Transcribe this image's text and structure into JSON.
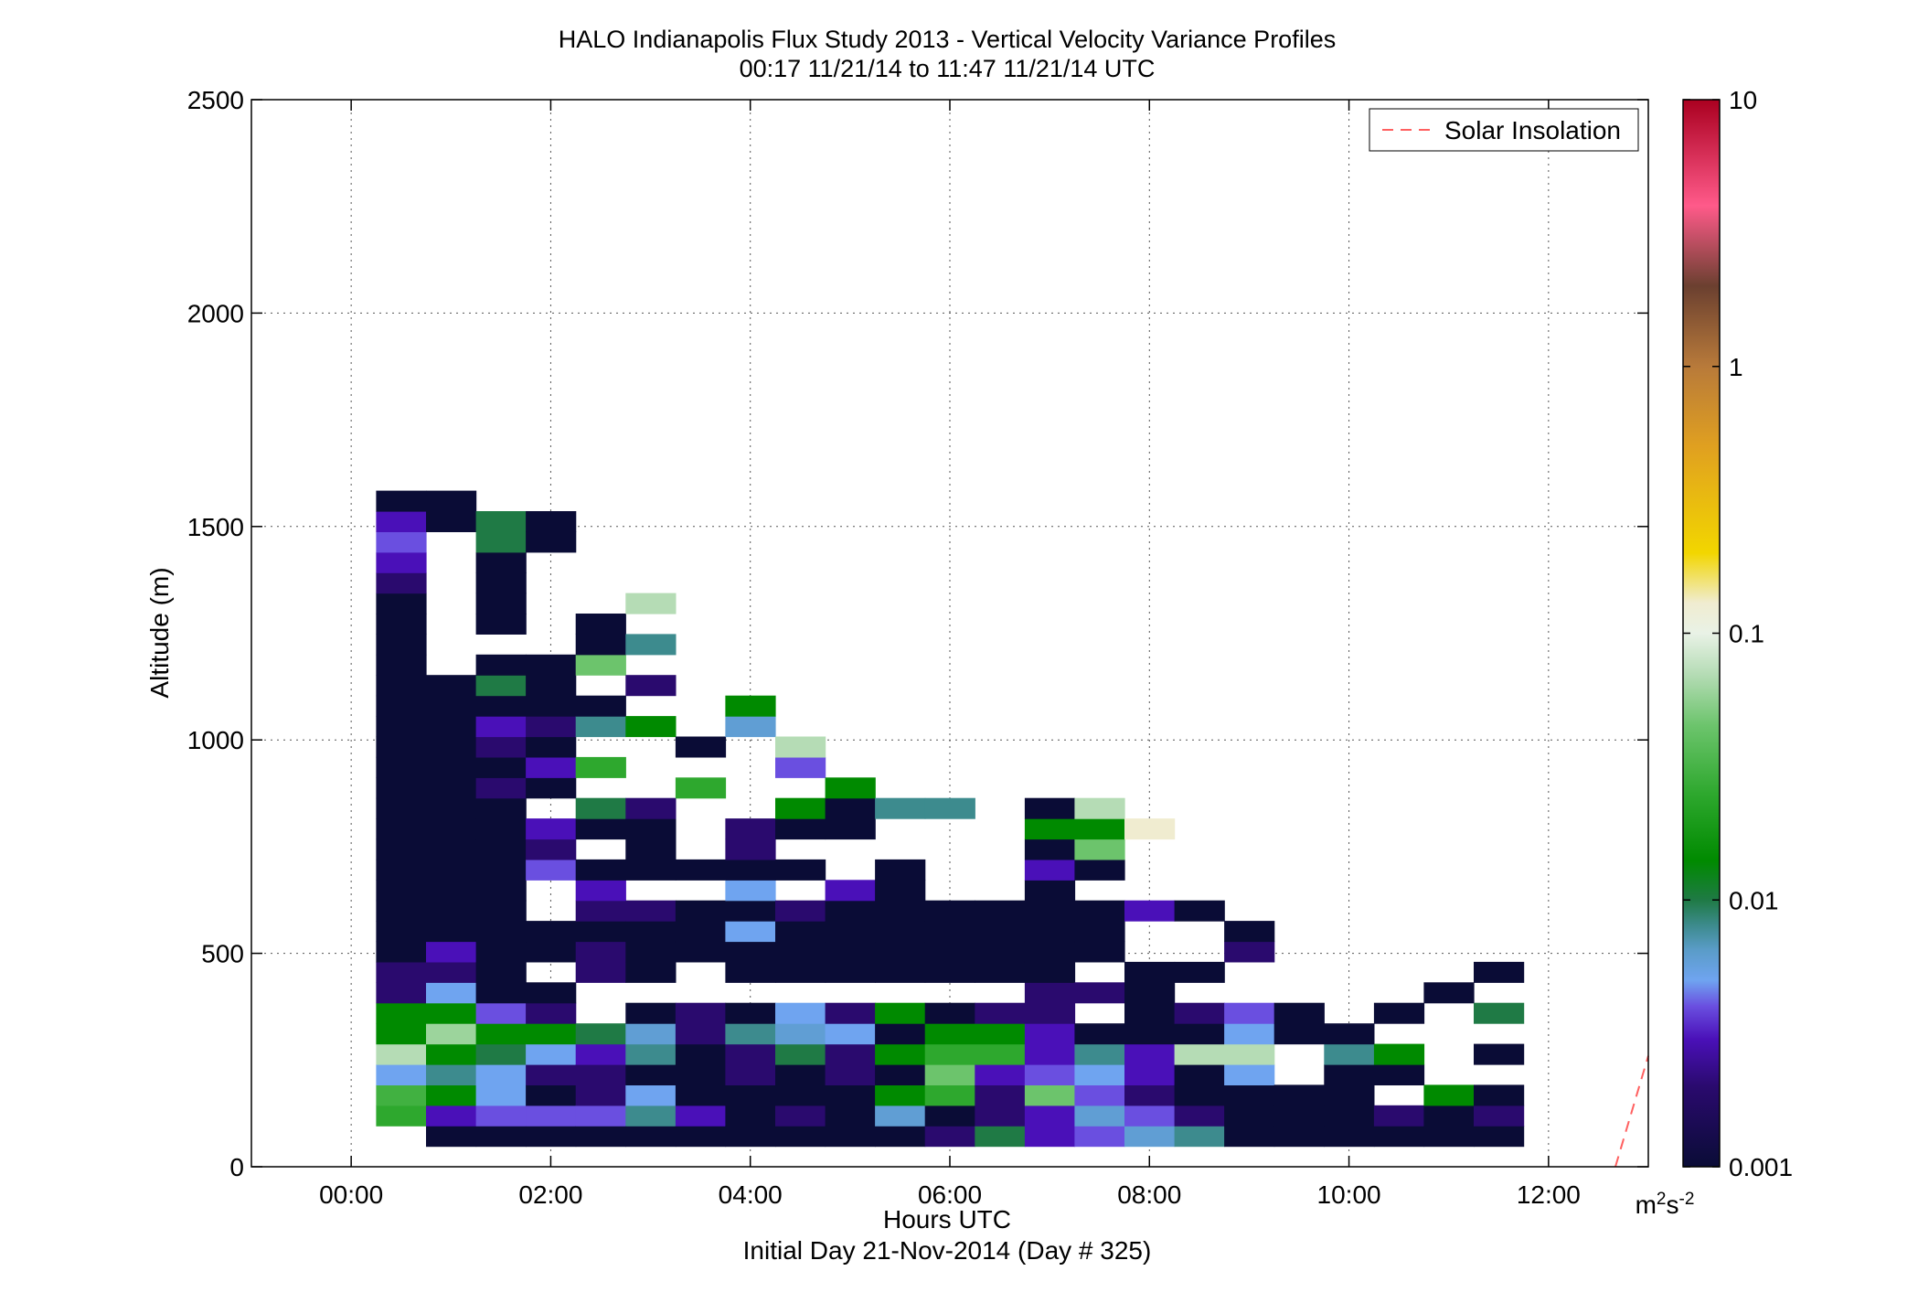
{
  "chart_data": {
    "type": "heatmap",
    "title": "HALO Indianapolis Flux Study 2013 - Vertical Velocity Variance Profiles",
    "subtitle": "00:17 11/21/14 to 11:47 11/21/14  UTC",
    "xlabel": "Hours UTC",
    "xlabel2": "Initial Day 21-Nov-2014 (Day # 325)",
    "ylabel": "Altitude (m)",
    "xlim": [
      -1,
      13
    ],
    "ylim": [
      0,
      2500
    ],
    "x_ticks": [
      0,
      2,
      4,
      6,
      8,
      10,
      12
    ],
    "x_tick_labels": [
      "00:00",
      "02:00",
      "04:00",
      "06:00",
      "08:00",
      "10:00",
      "12:00"
    ],
    "y_ticks": [
      0,
      500,
      1000,
      1500,
      2000,
      2500
    ],
    "y_tick_labels": [
      "0",
      "500",
      "1000",
      "1500",
      "2000",
      "2500"
    ],
    "grid": true,
    "legend": {
      "position": "top-right",
      "entries": [
        {
          "name": "Solar Insolation",
          "style": "dashed",
          "color": "#ff6060"
        }
      ]
    },
    "solar_insolation_line": {
      "x": [
        12.67,
        13.0
      ],
      "y": [
        0,
        260
      ]
    },
    "colorbar": {
      "scale": "log",
      "range": [
        0.001,
        10
      ],
      "ticks": [
        0.001,
        0.01,
        0.1,
        1,
        10
      ],
      "tick_labels": [
        "0.001",
        "0.01",
        "0.1",
        "1",
        "10"
      ],
      "units": "m2s-2",
      "stops": [
        {
          "v": 0.001,
          "color": "#0a0c36"
        },
        {
          "v": 0.002,
          "color": "#2a0a6e"
        },
        {
          "v": 0.003,
          "color": "#4a10b8"
        },
        {
          "v": 0.004,
          "color": "#6a4fe0"
        },
        {
          "v": 0.005,
          "color": "#6fa4f0"
        },
        {
          "v": 0.0065,
          "color": "#5a9cc8"
        },
        {
          "v": 0.008,
          "color": "#3d8b8e"
        },
        {
          "v": 0.01,
          "color": "#1f7a45"
        },
        {
          "v": 0.014,
          "color": "#008a00"
        },
        {
          "v": 0.025,
          "color": "#2ea82e"
        },
        {
          "v": 0.045,
          "color": "#6cc46c"
        },
        {
          "v": 0.07,
          "color": "#b5dcb5"
        },
        {
          "v": 0.1,
          "color": "#e9f2e6"
        },
        {
          "v": 0.13,
          "color": "#f0ecd0"
        },
        {
          "v": 0.2,
          "color": "#f2d600"
        },
        {
          "v": 0.5,
          "color": "#e0a020"
        },
        {
          "v": 1.0,
          "color": "#b87a3a"
        },
        {
          "v": 2.0,
          "color": "#6b4030"
        },
        {
          "v": 4.0,
          "color": "#ff5a8a"
        },
        {
          "v": 10.0,
          "color": "#aa0020"
        }
      ]
    },
    "cell": {
      "dt_hours": 0.5,
      "dz_m": 48
    },
    "time_bins": [
      0.5,
      1.0,
      1.5,
      2.0,
      2.5,
      3.0,
      3.5,
      4.0,
      4.5,
      5.0,
      5.5,
      6.0,
      6.5,
      7.0,
      7.5,
      8.0,
      8.5,
      9.0,
      9.5,
      10.0,
      10.5,
      11.0,
      11.5
    ],
    "alt_bins": [
      72,
      120,
      168,
      216,
      264,
      312,
      360,
      408,
      456,
      504,
      552,
      600,
      648,
      696,
      744,
      792,
      840,
      888,
      936,
      984,
      1032,
      1080,
      1128,
      1176,
      1224,
      1272,
      1320,
      1368,
      1416,
      1464,
      1512,
      1560
    ],
    "profiles": [
      [
        null,
        0.025,
        0.03,
        0.005,
        0.07,
        0.014,
        0.014,
        0.002,
        0.002,
        0.001,
        0.001,
        0.001,
        0.001,
        0.001,
        0.001,
        0.001,
        0.001,
        0.001,
        0.001,
        0.001,
        0.001,
        0.001,
        0.001,
        0.001,
        0.001,
        0.001,
        0.001,
        0.002,
        0.003,
        0.004,
        0.003,
        0.001
      ],
      [
        0.001,
        0.003,
        0.014,
        0.008,
        0.014,
        0.06,
        0.014,
        0.005,
        0.002,
        0.003,
        0.001,
        0.001,
        0.001,
        0.001,
        0.001,
        0.001,
        0.001,
        0.001,
        0.001,
        0.001,
        0.001,
        0.001,
        0.001,
        null,
        null,
        null,
        null,
        null,
        null,
        null,
        0.001,
        0.001
      ],
      [
        0.001,
        0.004,
        0.005,
        0.005,
        0.01,
        0.014,
        0.004,
        0.001,
        0.001,
        0.001,
        0.001,
        0.001,
        0.001,
        0.001,
        0.001,
        0.001,
        0.001,
        0.002,
        0.001,
        0.002,
        0.003,
        0.001,
        0.01,
        0.001,
        null,
        0.001,
        0.001,
        0.001,
        0.001,
        0.01,
        0.01,
        null
      ],
      [
        0.001,
        0.004,
        0.001,
        0.002,
        0.005,
        0.014,
        0.002,
        0.001,
        null,
        0.001,
        0.001,
        null,
        null,
        0.004,
        0.002,
        0.003,
        null,
        0.001,
        0.003,
        0.001,
        0.002,
        0.001,
        0.001,
        0.001,
        null,
        null,
        null,
        null,
        null,
        0.001,
        0.001,
        null
      ],
      [
        0.001,
        0.004,
        0.002,
        0.002,
        0.003,
        0.01,
        null,
        null,
        0.002,
        0.002,
        0.001,
        0.002,
        0.003,
        0.001,
        null,
        0.001,
        0.01,
        null,
        0.025,
        null,
        0.008,
        0.001,
        null,
        0.045,
        0.001,
        0.001,
        null,
        null,
        null,
        null,
        null,
        null
      ],
      [
        0.001,
        0.008,
        0.005,
        0.001,
        0.008,
        0.006,
        0.001,
        null,
        0.001,
        0.001,
        0.001,
        0.002,
        null,
        0.001,
        0.001,
        0.001,
        0.002,
        null,
        null,
        null,
        0.014,
        null,
        0.002,
        null,
        0.008,
        null,
        0.07,
        null,
        null,
        null,
        null,
        null
      ],
      [
        0.001,
        0.003,
        0.001,
        0.001,
        0.001,
        0.002,
        0.002,
        null,
        null,
        0.001,
        0.001,
        0.001,
        null,
        0.001,
        null,
        null,
        null,
        0.025,
        null,
        0.001,
        null,
        null,
        null,
        null,
        null,
        null,
        null,
        null,
        null,
        null,
        null,
        null
      ],
      [
        0.001,
        0.001,
        0.001,
        0.002,
        0.002,
        0.008,
        0.001,
        null,
        0.001,
        0.001,
        0.005,
        0.001,
        0.005,
        0.001,
        0.002,
        0.002,
        null,
        null,
        null,
        null,
        0.006,
        0.014,
        null,
        null,
        null,
        null,
        null,
        null,
        null,
        null,
        null,
        null
      ],
      [
        0.001,
        0.002,
        0.001,
        0.001,
        0.01,
        0.006,
        0.005,
        null,
        0.001,
        0.001,
        0.001,
        0.002,
        null,
        0.001,
        null,
        0.001,
        0.014,
        null,
        0.004,
        0.07,
        null,
        null,
        null,
        null,
        null,
        null,
        null,
        null,
        null,
        null,
        null,
        null
      ],
      [
        0.001,
        0.001,
        0.001,
        0.002,
        0.002,
        0.005,
        0.002,
        null,
        0.001,
        0.001,
        0.001,
        0.001,
        0.003,
        null,
        null,
        0.001,
        0.001,
        0.014,
        null,
        null,
        null,
        null,
        null,
        null,
        null,
        null,
        null,
        null,
        null,
        null,
        null,
        null
      ],
      [
        0.001,
        0.006,
        0.014,
        0.001,
        0.014,
        0.001,
        0.014,
        null,
        0.001,
        0.001,
        0.001,
        0.001,
        0.001,
        0.001,
        null,
        null,
        0.008,
        null,
        null,
        null,
        null,
        null,
        null,
        null,
        null,
        null,
        null,
        null,
        null,
        null,
        null,
        null
      ],
      [
        0.002,
        0.001,
        0.025,
        0.045,
        0.025,
        0.014,
        0.001,
        null,
        0.001,
        0.001,
        0.001,
        0.001,
        null,
        null,
        null,
        null,
        0.008,
        null,
        null,
        null,
        null,
        null,
        null,
        null,
        null,
        null,
        null,
        null,
        null,
        null,
        null,
        null
      ],
      [
        0.01,
        0.002,
        0.002,
        0.003,
        0.025,
        0.014,
        0.002,
        null,
        0.001,
        0.001,
        0.001,
        0.001,
        null,
        null,
        null,
        null,
        null,
        null,
        null,
        null,
        null,
        null,
        null,
        null,
        null,
        null,
        null,
        null,
        null,
        null,
        null,
        null
      ],
      [
        0.003,
        0.003,
        0.045,
        0.004,
        0.003,
        0.003,
        0.002,
        0.002,
        0.001,
        0.001,
        0.001,
        0.001,
        0.001,
        0.003,
        0.001,
        0.014,
        0.001,
        null,
        null,
        null,
        null,
        null,
        null,
        null,
        null,
        null,
        null,
        null,
        null,
        null,
        null,
        null
      ],
      [
        0.004,
        0.006,
        0.004,
        0.005,
        0.008,
        0.001,
        null,
        0.002,
        null,
        0.001,
        0.001,
        0.001,
        null,
        0.001,
        0.045,
        0.014,
        0.07,
        null,
        null,
        null,
        null,
        null,
        null,
        null,
        null,
        null,
        null,
        null,
        null,
        null,
        null,
        null
      ],
      [
        0.006,
        0.004,
        0.002,
        0.003,
        0.003,
        0.001,
        0.001,
        0.001,
        0.001,
        null,
        null,
        0.003,
        null,
        null,
        null,
        0.13,
        null,
        null,
        null,
        null,
        null,
        null,
        null,
        null,
        null,
        null,
        null,
        null,
        null,
        null,
        null,
        null
      ],
      [
        0.008,
        0.002,
        0.001,
        0.001,
        0.07,
        0.001,
        0.002,
        null,
        0.001,
        null,
        null,
        0.001,
        null,
        null,
        null,
        null,
        null,
        null,
        null,
        null,
        null,
        null,
        null,
        null,
        null,
        null,
        null,
        null,
        null,
        null,
        null,
        null
      ],
      [
        0.001,
        0.001,
        0.001,
        0.005,
        0.07,
        0.005,
        0.004,
        null,
        null,
        0.002,
        0.001,
        null,
        null,
        null,
        null,
        null,
        null,
        null,
        null,
        null,
        null,
        null,
        null,
        null,
        null,
        null,
        null,
        null,
        null,
        null,
        null,
        null
      ],
      [
        0.001,
        0.001,
        0.001,
        null,
        null,
        0.001,
        0.001,
        null,
        null,
        null,
        null,
        null,
        null,
        null,
        null,
        null,
        null,
        null,
        null,
        null,
        null,
        null,
        null,
        null,
        null,
        null,
        null,
        null,
        null,
        null,
        null,
        null
      ],
      [
        0.001,
        0.001,
        0.001,
        0.001,
        0.008,
        0.001,
        null,
        null,
        null,
        null,
        null,
        null,
        null,
        null,
        null,
        null,
        null,
        null,
        null,
        null,
        null,
        null,
        null,
        null,
        null,
        null,
        null,
        null,
        null,
        null,
        null,
        null
      ],
      [
        0.001,
        0.002,
        null,
        0.001,
        0.014,
        null,
        0.001,
        null,
        null,
        null,
        null,
        null,
        null,
        null,
        null,
        null,
        null,
        null,
        null,
        null,
        null,
        null,
        null,
        null,
        null,
        null,
        null,
        null,
        null,
        null,
        null,
        null
      ],
      [
        0.001,
        0.001,
        0.014,
        null,
        null,
        null,
        null,
        0.001,
        null,
        null,
        null,
        null,
        null,
        null,
        null,
        null,
        null,
        null,
        null,
        null,
        null,
        null,
        null,
        null,
        null,
        null,
        null,
        null,
        null,
        null,
        null,
        null
      ],
      [
        0.001,
        0.002,
        0.001,
        null,
        0.001,
        null,
        0.01,
        null,
        0.001,
        null,
        null,
        null,
        null,
        null,
        null,
        null,
        null,
        null,
        null,
        null,
        null,
        null,
        null,
        null,
        null,
        null,
        null,
        null,
        null,
        null,
        null,
        null
      ]
    ]
  }
}
